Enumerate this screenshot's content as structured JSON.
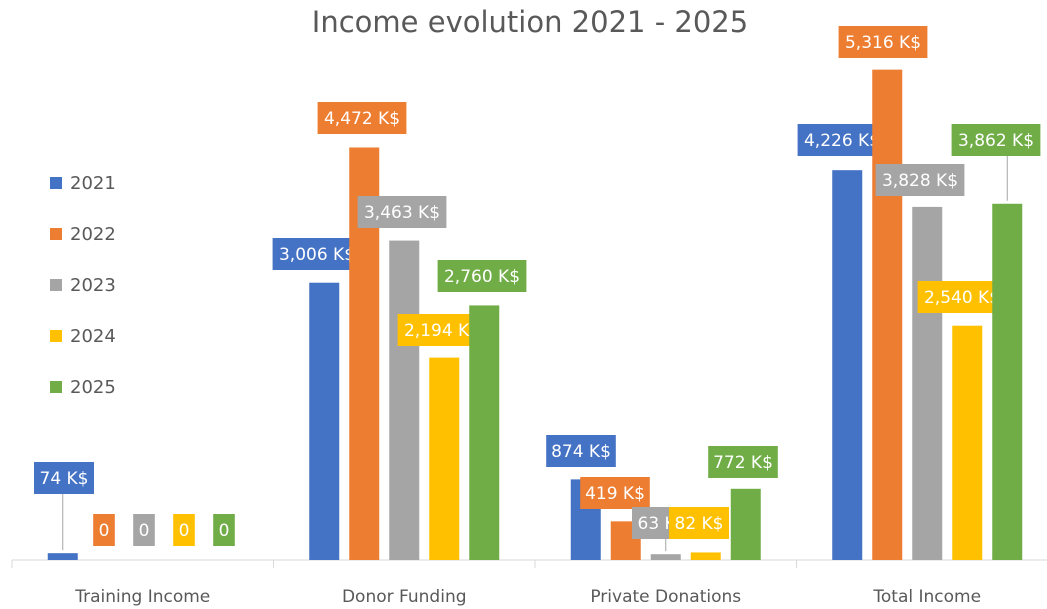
{
  "chart_data": {
    "type": "bar",
    "title": "Income evolution 2021 - 2025",
    "categories": [
      "Training Income",
      "Donor Funding",
      "Private Donations",
      "Total Income"
    ],
    "series": [
      {
        "name": "2021",
        "color": "#4472c4",
        "values": [
          74,
          3006,
          874,
          4226
        ],
        "value_labels": [
          "74 K$",
          "3,006 K$",
          "874 K$",
          "4,226 K$"
        ]
      },
      {
        "name": "2022",
        "color": "#ed7d31",
        "values": [
          0,
          4472,
          419,
          5316
        ],
        "value_labels": [
          "0",
          "4,472 K$",
          "419 K$",
          "5,316 K$"
        ]
      },
      {
        "name": "2023",
        "color": "#a5a5a5",
        "values": [
          0,
          3463,
          63,
          3828
        ],
        "value_labels": [
          "0",
          "3,463 K$",
          "63 K$",
          "3,828 K$"
        ]
      },
      {
        "name": "2024",
        "color": "#ffc000",
        "values": [
          0,
          2194,
          82,
          2540
        ],
        "value_labels": [
          "0",
          "2,194 K$",
          "82 K$",
          "2,540 K$"
        ]
      },
      {
        "name": "2025",
        "color": "#70ad47",
        "values": [
          0,
          2760,
          772,
          3862
        ],
        "value_labels": [
          "0",
          "2,760 K$",
          "772 K$",
          "3,862 K$"
        ]
      }
    ],
    "ylim": [
      0,
      5800
    ],
    "legend": "left"
  }
}
